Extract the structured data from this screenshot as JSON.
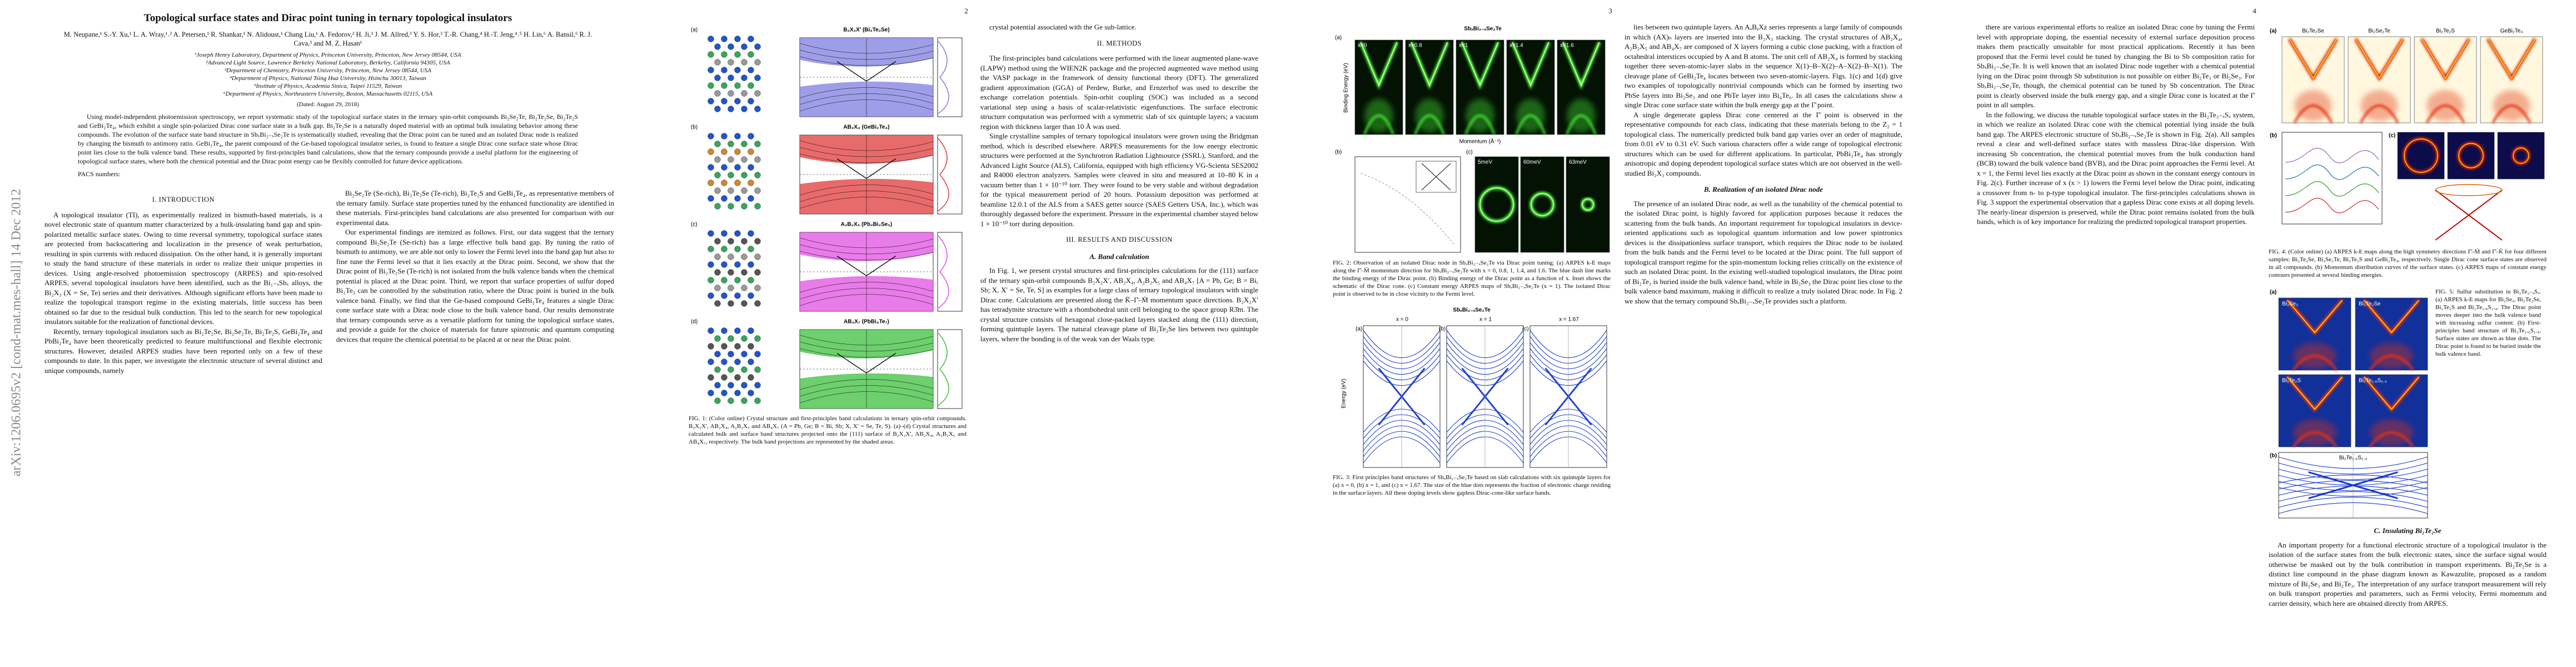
{
  "sidebar": "arXiv:1206.0695v2  [cond-mat.mes-hall]  14 Dec 2012",
  "header": {
    "title": "Topological surface states and Dirac point tuning in ternary topological insulators",
    "authors": "M. Neupane,¹ S.-Y. Xu,¹ L. A. Wray,¹˒² A. Petersen,¹ R. Shankar,¹ N. Alidoust,¹ Chang Liu,¹ A. Fedorov,² H. Ji,³ J. M. Allred,³ Y. S. Hor,³ T.-R. Chang,⁴ H.-T. Jeng,⁴˒⁵ H. Lin,⁶ A. Bansil,⁶ R. J. Cava,³ and M. Z. Hasan¹",
    "affiliations": [
      "¹Joseph Henry Laboratory, Department of Physics, Princeton University, Princeton, New Jersey 08544, USA",
      "²Advanced Light Source, Lawrence Berkeley National Laboratory, Berkeley, California 94305, USA",
      "³Department of Chemistry, Princeton University, Princeton, New Jersey 08544, USA",
      "⁴Department of Physics, National Tsing Hua University, Hsinchu 30013, Taiwan",
      "⁵Institute of Physics, Academia Sinica, Taipei 11529, Taiwan",
      "⁶Department of Physics, Northeastern University, Boston, Massachusetts 02115, USA"
    ],
    "dated": "(Dated: August 29, 2018)",
    "abstract": "Using model-independent photoemission spectroscopy, we report systematic study of the topological surface states in the ternary spin-orbit compounds Bi₂Se₂Te, Bi₂Te₂Se, Bi₂Te₂S and GeBi₂Te₄, which exhibit a single spin-polarized Dirac cone surface state in a bulk gap. Bi₂Te₂Se is a naturally doped material with an optimal bulk insulating behavior among these compounds. The evolution of the surface state band structure in SbₓBi₂₋ₓSe₂Te is systematically studied, revealing that the Dirac point can be tuned and an isolated Dirac node is realized by changing the bismuth to antimony ratio. GeBi₂Te₄, the parent compound of the Ge-based topological insulator series, is found to feature a single Dirac cone surface state whose Dirac point lies close to the bulk valence band. These results, supported by first-principles band calculations, show that the ternary compounds provide a useful platform for the engineering of topological surface states, where both the chemical potential and the Dirac point energy can be flexibly controlled for future device applications.",
    "pacs": "PACS numbers:"
  },
  "pages": [
    {
      "columns": [
        [
          {
            "heading": "I.  INTRODUCTION"
          },
          {
            "text": "A topological insulator (TI), as experimentally realized in bismuth-based materials, is a novel electronic state of quantum matter characterized by a bulk-insulating band gap and spin-polarized metallic surface states. Owing to time reversal symmetry, topological surface states are protected from backscattering and localization in the presence of weak perturbation, resulting in spin currents with reduced dissipation. On the other hand, it is generally important to study the band structure of these materials in order to realize their unique properties in devices. Using angle-resolved photoemission spectroscopy (ARPES) and spin-resolved ARPES, several topological insulators have been identified, such as the Bi₁₋ₓSbₓ alloys, the Bi₂X₃ (X = Se, Te) series and their derivatives. Although significant efforts have been made to realize the topological transport regime in the existing materials, little success has been obtained so far due to the residual bulk conduction. This led to the search for new topological insulators suitable for the realization of functional devices."
          },
          {
            "text": "Recently, ternary topological insulators such as Bi₂Te₂Se, Bi₂Se₂Te, Bi₂Te₂S, GeBi₂Te₄ and PbBi₂Te₄ have been theoretically predicted to feature multifunctional and flexible electronic structures. However, detailed ARPES studies have been reported only on a few of these compounds to date. In this paper, we investigate the electronic structure of several distinct and unique compounds, namely"
          }
        ],
        [
          {
            "text": "Bi₂Se₂Te (Se-rich), Bi₂Te₂Se (Te-rich), Bi₂Te₂S and GeBi₂Te₄, as representative members of the ternary family. Surface state properties tuned by the enhanced functionality are identified in these materials. First-principles band calculations are also presented for comparison with our experimental data."
          },
          {
            "text": "Our experimental findings are itemized as follows. First, our data suggest that the ternary compound Bi₂Se₂Te (Se-rich) has a large effective bulk band gap. By tuning the ratio of bismuth to antimony, we are able not only to lower the Fermi level into the band gap but also to fine tune the Fermi level so that it lies exactly at the Dirac point. Second, we show that the Dirac point of Bi₂Te₂Se (Te-rich) is not isolated from the bulk valence bands when the chemical potential is placed at the Dirac point. Third, we report that surface properties of sulfur doped Bi₂Te₃ can be controlled by the substitution ratio, where the Dirac point is buried in the bulk valence band. Finally, we find that the Ge-based compound GeBi₂Te₄ features a single Dirac cone surface state with a Dirac node close to the bulk valence band. Our results demonstrate that ternary compounds serve as a versatile platform for tuning the topological surface states, and provide a guide for the choice of materials for future spintronic and quantum computing devices that require the chemical potential to be placed at or near the Dirac point."
          }
        ]
      ]
    },
    {
      "number": "2",
      "columns": [
        [
          {
            "figure": {
              "labels": [
                "(a)",
                "B₂X₂X′ (Bi₂Te₂Se)",
                "(b)",
                "AB₂X₄ (GeBi₂Te₄)",
                "(c)",
                "A₂B₂X₅ (Pb₂Bi₂Se₅)",
                "(d)",
                "AB₄X₇ (PbBi₄Te₇)"
              ],
              "caption": "FIG. 1: (Color online) Crystal structure and first-principles band calculations in ternary spin-orbit compounds. B₂X₂X′, AB₂X₄, A₂B₂X₅ and AB₄X₇ (A = Pb, Ge; B = Bi, Sb; X, X′ = Se, Te, S). (a)–(d) Crystal structures and calculated bulk and surface band structures projected onto the (111) surface of B₂X₂X′, AB₂X₄, A₂B₂X₅ and AB₄X₇, respectively. The bulk band projections are represented by the shaded areas."
            }
          }
        ],
        [
          {
            "text": "crystal potential associated with the Ge sub-lattice."
          },
          {
            "heading": "II.  METHODS"
          },
          {
            "text": "The first-principles band calculations were performed with the linear augmented plane-wave (LAPW) method using the WIEN2K package and the projected augmented wave method using the VASP package in the framework of density functional theory (DFT). The generalized gradient approximation (GGA) of Perdew, Burke, and Ernzerhof was used to describe the exchange correlation potentials. Spin-orbit coupling (SOC) was included as a second variational step using a basis of scalar-relativistic eigenfunctions. The surface electronic structure computation was performed with a symmetric slab of six quintuple layers; a vacuum region with thickness larger than 10 Å was used."
          },
          {
            "text": "Single crystalline samples of ternary topological insulators were grown using the Bridgman method, which is described elsewhere. ARPES measurements for the low energy electronic structures were performed at the Synchrotron Radiation Lightsource (SSRL), Stanford, and the Advanced Light Source (ALS), California, equipped with high efficiency VG-Scienta SES2002 and R4000 electron analyzers. Samples were cleaved in situ and measured at 10–80 K in a vacuum better than 1 × 10⁻¹⁰ torr. They were found to be very stable and without degradation for the typical measurement period of 20 hours. Potassium deposition was performed at beamline 12.0.1 of the ALS from a SAES getter source (SAES Getters USA, Inc.), which was thoroughly degassed before the experiment. Pressure in the experimental chamber stayed below 1 × 10⁻¹⁰ torr during deposition."
          },
          {
            "heading": "III.  RESULTS AND DISCUSSION"
          },
          {
            "subheading": "A.  Band calculation"
          },
          {
            "text": "In Fig. 1, we present crystal structures and first-principles calculations for the (111) surface of the ternary spin-orbit compounds B₂X₂X′, AB₂X₄, A₂B₂X₅ and AB₄X₇ [A = Pb, Ge; B = Bi, Sb; X, X′ = Se, Te, S] as examples for a large class of ternary topological insulators with single Dirac cone. Calculations are presented along the K̄–Γ̄–M̄ momentum space directions. B₂X₂X′ has tetradymite structure with a rhombohedral unit cell belonging to the space group R3̄m. The crystal structure consists of hexagonal close-packed layers stacked along the (111) direction, forming quintuple layers. The natural cleavage plane of Bi₂Te₂Se lies between two quintuple layers, where the bonding is of the weak van der Waals type."
          }
        ]
      ]
    },
    {
      "number": "3",
      "columns": [
        [
          {
            "figure": {
              "labels": [
                "SbₓBi₂₋ₓSe₂Te",
                "(a)",
                "x=0",
                "x=0.8",
                "x=1",
                "x=1.4",
                "x=1.6",
                "Momentum (Å⁻¹)",
                "(b)",
                "(c)",
                "5meV",
                "60meV",
                "63meV",
                "Binding Energy (eV)"
              ],
              "caption": "FIG. 2: Observation of an isolated Dirac node in SbₓBi₂₋ₓSe₂Te via Dirac point tuning. (a) ARPES k-E maps along the Γ̄–M̄ momentum direction for SbₓBi₂₋ₓSe₂Te with x = 0, 0.8, 1, 1.4, and 1.6. The blue dash line marks the binding energy of the Dirac point. (b) Binding energy of the Dirac point as a function of x. Inset shows the schematic of the Dirac cone. (c) Constant energy ARPES maps of SbₓBi₂₋ₓSe₂Te (x = 1). The isolated Dirac point is observed to be in close vicinity to the Fermi level."
            }
          },
          {
            "figure": {
              "labels": [
                "SbₓBi₂₋ₓSe₂Te",
                "x = 0",
                "x = 1",
                "x = 1.67",
                "(a)",
                "(b)",
                "(c)",
                "Energy (eV)"
              ],
              "caption": "FIG. 3: First principles band structures of SbₓBi₂₋ₓSe₂Te based on slab calculations with six quintuple layers for (a) x = 0, (b) x = 1, and (c) x = 1.67. The size of the blue dots represents the fraction of electronic charge residing in the surface layers. All these doping levels show gapless Dirac-cone-like surface bands."
            }
          }
        ],
        [
          {
            "text": "lies between two quintuple layers. An AₓBᵧXz series represents a large family of compounds in which (AX)ₙ layers are inserted into the B₂X₃ stacking. The crystal structures of AB₂X₄, A₂B₂X₅ and AB₄X₇ are composed of X layers forming a cubic close packing, with a fraction of octahedral interstices occupied by A and B atoms. The unit cell of AB₂X₄ is formed by stacking together three seven-atomic-layer slabs in the sequence X(1)–B–X(2)–A–X(2)–B–X(1). The cleavage plane of GeBi₂Te₄ locates between two seven-atomic-layers. Figs. 1(c) and 1(d) give two examples of topologically nontrivial compounds which can be formed by inserting two PbSe layers into Bi₂Se₃ and one PbTe layer into Bi₄Te₆. In all cases the calculations show a single Dirac cone surface state within the bulk energy gap at the Γ̄ point."
          },
          {
            "text": "A single degenerate gapless Dirac cone centered at the Γ̄ point is observed in the representative compounds for each class, indicating that these materials belong to the Z₂ = 1 topological class. The numerically predicted bulk band gap varies over an order of magnitude, from 0.01 eV to 0.31 eV. Such various characters offer a wide range of topological electronic structures which can be used for different applications. In particular, PbBi₂Te₄ has strongly anisotropic and doping dependent topological surface states which are not observed in the well-studied Bi₂X₃ compounds."
          },
          {
            "subheading": "B.  Realization of an isolated Dirac node"
          },
          {
            "text": "The presence of an isolated Dirac node, as well as the tunability of the chemical potential to the isolated Dirac point, is highly favored for application purposes because it reduces the scattering from the bulk bands. An important requirement for topological insulators in device-oriented applications such as topological quantum information and low power spintronics devices is the dissipationless surface transport, which requires the Dirac node to be isolated from the bulk bands and the Fermi level to be located at the Dirac point. The full support of topological transport regime for the spin-momentum locking relies critically on the existence of such an isolated Dirac point. In the existing well-studied topological insulators, the Dirac point of Bi₂Te₃ is buried inside the bulk valence band, while in Bi₂Se₃ the Dirac point lies close to the bulk valence band maximum, making it difficult to realize a truly isolated Dirac node. In Fig. 2 we show that the ternary compound SbₓBi₂₋ₓSe₂Te provides such a platform."
          }
        ]
      ]
    },
    {
      "number": "4",
      "columns": [
        [
          {
            "text": "there are various experimental efforts to realize an isolated Dirac cone by tuning the Fermi level with appropriate doping, the essential necessity of external surface deposition process makes them practically unsuitable for most practical applications. Recently it has been proposed that the Fermi level could be tuned by changing the Bi to Sb composition ratio for SbₓBi₂₋ₓSe₂Te. It is well known that an isolated Dirac node together with a chemical potential lying on the Dirac point through Sb substitution is not possible on either Bi₂Te₃ or Bi₂Se₃. For SbₓBi₂₋ₓSe₂Te, though, the chemical potential can be tuned by Sb concentration. The Dirac point is clearly observed inside the bulk energy gap, and a single Dirac cone is located at the Γ̄ point in all samples."
          },
          {
            "text": "In the following, we discuss the tunable topological surface states in the Bi₂Te₃₋ₓSₓ system, in which we realize an isolated Dirac cone with the chemical potential lying inside the bulk band gap. The ARPES electronic structure of SbₓBi₂₋ₓSe₂Te is shown in Fig. 2(a). All samples reveal a clear and well-defined surface states with massless Dirac-like dispersion. With increasing Sb concentration, the chemical potential moves from the bulk conduction band (BCB) toward the bulk valence band (BVB), and the Dirac point approaches the Fermi level. At x = 1, the Fermi level lies exactly at the Dirac point as shown in the constant energy contours in Fig. 2(c). Further increase of x (x > 1) lowers the Fermi level below the Dirac point, indicating a crossover from n- to p-type topological insulator. The first-principles calculations shown in Fig. 3 support the experimental observation that a gapless Dirac cone exists at all doping levels. The nearly-linear dispersion is preserved, while the Dirac point remains isolated from the bulk bands, which is of key importance for realizing the predicted topological transport properties."
          }
        ],
        [
          {
            "figure": {
              "labels": [
                "(a)",
                "Bi₂Te₂Se",
                "Bi₂Se₂Te",
                "Bi₂Te₂S",
                "GeBi₂Te₄",
                "(b)",
                "(c)"
              ],
              "caption": "FIG. 4: (Color online) (a) ARPES k-E maps along the high symmetry directions Γ̄–M̄ and Γ̄–K̄ for four different samples: Bi₂Te₂Se, Bi₂Se₂Te, Bi₂Te₂S and GeBi₂Te₄, respectively. Single Dirac cone surface states are observed in all compounds. (b) Momentum distribution curves of the surface states. (c) ARPES maps of constant energy contours presented at several binding energies."
            }
          },
          {
            "figure": {
              "labels": [
                "(a)",
                "Bi₂Se₃",
                "Bi₂Te₂Se",
                "Bi₂Te₂S",
                "Bi₂Te₁.₆S₁.₄",
                "(b)",
                "Bi₂Te₁.₆S₁.₄"
              ],
              "caption": "FIG. 5: Sulfur substitution in Bi₂Te₃₋ₓSₓ. (a) ARPES k-E maps for Bi₂Se₃, Bi₂Te₂Se, Bi₂Te₂S and Bi₂Te₁.₆S₁.₄. The Dirac point moves deeper into the bulk valence band with increasing sulfur content. (b) First-principles band structure of Bi₂Te₁.₆S₁.₄. Surface states are shown as blue dots. The Dirac point is found to be buried inside the bulk valence band."
            }
          },
          {
            "subheading": "C.  Insulating Bi₂Te₂Se"
          },
          {
            "text": "An important property for a functional electronic structure of a topological insulator is the isolation of the surface states from the bulk electronic states, since the surface signal would otherwise be masked out by the bulk contribution in transport experiments. Bi₂Te₂Se is a distinct line compound in the phase diagram known as Kawazulite, proposed as a random mixture of Bi₂Se₃ and Bi₂Te₃. The interpretation of any surface transport measurement will rely on bulk transport properties and parameters, such as Fermi velocity, Fermi momentum and carrier density, which here are obtained directly from ARPES."
          }
        ]
      ]
    }
  ]
}
